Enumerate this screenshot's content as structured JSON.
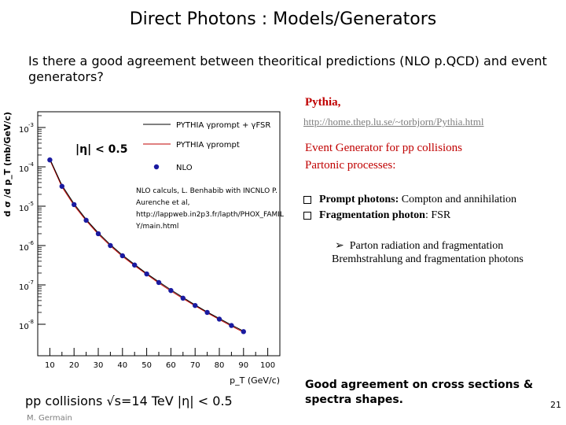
{
  "slide": {
    "title": "Direct Photons : Models/Generators",
    "question": "Is there a good agreement between theoritical predictions (NLO p.QCD) and event generators?",
    "pythia_title": "Pythia,",
    "pythia_url": "http://home.thep.lu.se/~torbjorn/Pythia.html",
    "eg_line1": "Event Generator for pp collisions",
    "eg_line2": "Partonic processes:",
    "bullets": [
      {
        "bold": "Prompt photons:",
        "rest": " Compton and annihilation"
      },
      {
        "bold": "Fragmentation photon",
        "rest": ": FSR"
      }
    ],
    "sub_bullet_1": "Parton radiation and fragmentation",
    "sub_bullet_2": "Bremhstrahlung and fragmentation photons",
    "conclusion": "Good agreement on cross sections & spectra shapes.",
    "page_number": "21",
    "author": "M. Germain",
    "footer_caption": "pp collisions √s=14 TeV |η| < 0.5",
    "colors": {
      "accent_red": "#c00000",
      "link_gray": "#7f7f7f",
      "nlo_blue": "#1a1aa0"
    }
  },
  "chart_data": {
    "type": "scatter",
    "title": "",
    "cut_label": "|η| < 0.5",
    "xlabel": "p_T (GeV/c)",
    "ylabel": "d σ /d p_T (mb/GeV/c)",
    "xlim": [
      5,
      105
    ],
    "ylim_exp": [
      -8.8,
      -2.6
    ],
    "yscale": "log",
    "x_ticks": [
      10,
      20,
      30,
      40,
      50,
      60,
      70,
      80,
      90,
      100
    ],
    "y_tick_labels": [
      {
        "base": "10",
        "exp": "-3",
        "value_exp": -3
      },
      {
        "base": "10",
        "exp": "-4",
        "value_exp": -4
      },
      {
        "base": "10",
        "exp": "-5",
        "value_exp": -5
      },
      {
        "base": "10",
        "exp": "-6",
        "value_exp": -6
      },
      {
        "base": "10",
        "exp": "-7",
        "value_exp": -7
      },
      {
        "base": "10",
        "exp": "-8",
        "value_exp": -8
      }
    ],
    "legend": [
      {
        "label": "PYTHIA γprompt + γFSR",
        "style": "black-line"
      },
      {
        "label": "PYTHIA γprompt",
        "style": "red-line"
      },
      {
        "label": "NLO",
        "style": "blue-point"
      }
    ],
    "nlo_annotation": "NLO calculs, L. Benhabib with INCNLO P. Aurenche et al, http://lappweb.in2p3.fr/lapth/PHOX_FAMILY/main.html",
    "nlo_annotation_lines": [
      "NLO calculs, L. Benhabib with INCNLO P.",
      "Aurenche et al,",
      "http://lappweb.in2p3.fr/lapth/PHOX_FAMIL",
      "Y/main.html"
    ],
    "series": [
      {
        "name": "NLO",
        "x": [
          10,
          15,
          20,
          25,
          30,
          35,
          40,
          45,
          50,
          55,
          60,
          65,
          70,
          75,
          80,
          85,
          90
        ],
        "y": [
          0.00015,
          3.2e-05,
          1.1e-05,
          4.4e-06,
          2e-06,
          1e-06,
          5.5e-07,
          3.2e-07,
          1.9e-07,
          1.15e-07,
          7.2e-08,
          4.6e-08,
          3e-08,
          2e-08,
          1.35e-08,
          9.3e-09,
          6.5e-09
        ]
      },
      {
        "name": "PYTHIA γprompt + γFSR",
        "x": [
          10,
          15,
          20,
          25,
          30,
          35,
          40,
          45,
          50,
          55,
          60,
          65,
          70,
          75,
          80,
          85,
          90
        ],
        "y": [
          0.00016,
          3.4e-05,
          1.15e-05,
          4.6e-06,
          2.1e-06,
          1.05e-06,
          5.7e-07,
          3.3e-07,
          1.95e-07,
          1.2e-07,
          7.5e-08,
          4.8e-08,
          3.1e-08,
          2.05e-08,
          1.4e-08,
          9.6e-09,
          6.7e-09
        ]
      },
      {
        "name": "PYTHIA γprompt",
        "x": [
          10,
          15,
          20,
          25,
          30,
          35,
          40,
          45,
          50,
          55,
          60,
          65,
          70,
          75,
          80,
          85,
          90
        ],
        "y": [
          0.00015,
          3.1e-05,
          1.05e-05,
          4.3e-06,
          1.95e-06,
          9.8e-07,
          5.3e-07,
          3.1e-07,
          1.85e-07,
          1.12e-07,
          7e-08,
          4.5e-08,
          2.95e-08,
          1.95e-08,
          1.32e-08,
          9e-09,
          6.3e-09
        ]
      }
    ]
  }
}
